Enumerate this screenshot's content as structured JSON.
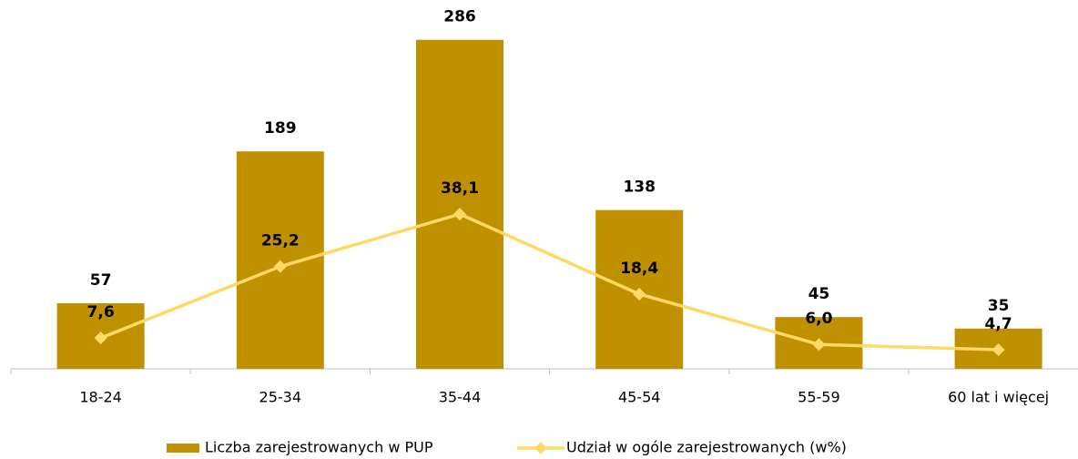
{
  "chart_data": {
    "type": "bar_line",
    "categories": [
      "18-24",
      "25-34",
      "35-44",
      "45-54",
      "55-59",
      "60 lat i więcej"
    ],
    "series": [
      {
        "name": "Liczba zarejestrowanych w PUP",
        "type": "bar",
        "color": "#bf9000",
        "values": [
          57,
          189,
          286,
          138,
          45,
          35
        ]
      },
      {
        "name": "Udział w ogóle zarejestrowanych (w%)",
        "type": "line",
        "axis": "y2",
        "color": "#ffd966",
        "values": [
          7.6,
          25.2,
          38.1,
          18.4,
          6.0,
          4.7
        ],
        "value_labels": [
          "7,6",
          "25,2",
          "38,1",
          "18,4",
          "6,0",
          "4,7"
        ]
      }
    ],
    "ylim": [
      0,
      300
    ],
    "y2lim": [
      0,
      85
    ],
    "legend": "bottom"
  }
}
